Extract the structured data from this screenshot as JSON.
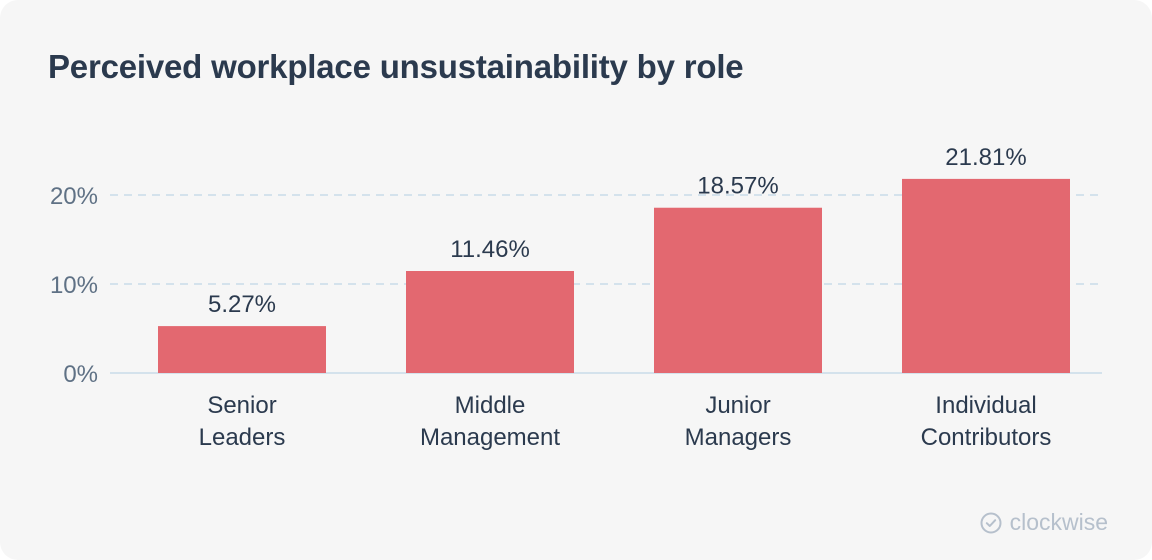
{
  "title": "Perceived workplace unsustainability by role",
  "brand": {
    "name": "clockwise",
    "icon": "check-circle-icon"
  },
  "colors": {
    "background": "#f6f6f6",
    "bar": "#e36870",
    "text": "#2b3a4e",
    "axis_text": "#5f7185",
    "grid": "#c9dce9",
    "brand": "#b6c0cc"
  },
  "chart_data": {
    "type": "bar",
    "title": "Perceived workplace unsustainability by role",
    "categories": [
      [
        "Senior",
        "Leaders"
      ],
      [
        "Middle",
        "Management"
      ],
      [
        "Junior",
        "Managers"
      ],
      [
        "Individual",
        "Contributors"
      ]
    ],
    "values": [
      5.27,
      11.46,
      18.57,
      21.81
    ],
    "data_labels": [
      "5.27%",
      "11.46%",
      "18.57%",
      "21.81%"
    ],
    "y_ticks": [
      0,
      10,
      20
    ],
    "y_tick_labels": [
      "0%",
      "10%",
      "20%"
    ],
    "ylim": [
      0,
      20
    ],
    "grid": true
  }
}
